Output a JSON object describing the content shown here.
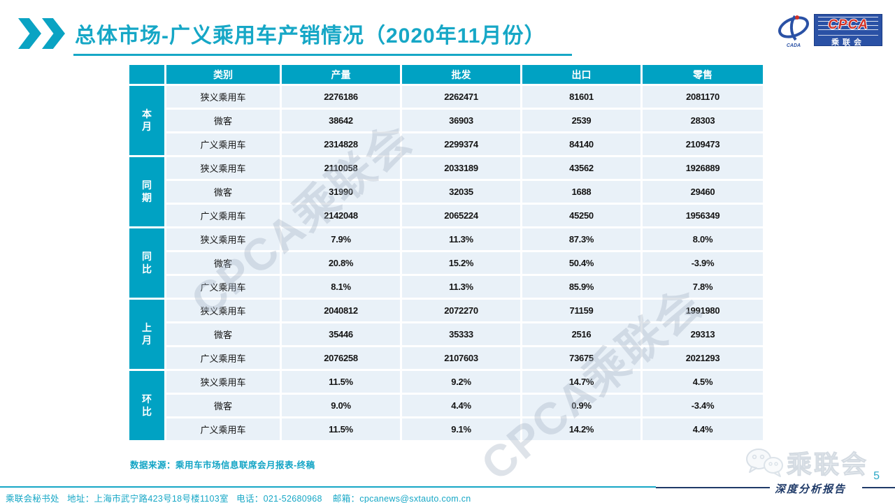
{
  "slide": {
    "title": "总体市场-广义乘用车产销情况（2020年11月份）",
    "source_note": "数据来源：乘用车市场信息联席会月报表-终稿",
    "contact": "乘联会秘书处   地址：上海市武宁路423号18号楼1103室   电话：021-52680968    邮箱：cpcanews@sxtauto.com.cn",
    "report_badge": "深度分析报告",
    "page_number": "5",
    "watermark_text": "CPCA乘联会"
  },
  "logo": {
    "emblem_sub": "CADA",
    "cpca_text": "CPCA",
    "cpca_sub": "乘联会",
    "gray_logo_text": "乘联会"
  },
  "colors": {
    "teal": "#00A2C3",
    "title_teal": "#16A7C6",
    "row_bg": "#E9F1F8",
    "navy": "#1F3A68",
    "logo_blue": "#2A51A5",
    "logo_red": "#D23026"
  },
  "table": {
    "columns": [
      "类别",
      "产量",
      "批发",
      "出口",
      "零售"
    ],
    "groups": [
      {
        "label": "本月",
        "rows": [
          {
            "category": "狭义乘用车",
            "values": [
              "2276186",
              "2262471",
              "81601",
              "2081170"
            ]
          },
          {
            "category": "微客",
            "values": [
              "38642",
              "36903",
              "2539",
              "28303"
            ]
          },
          {
            "category": "广义乘用车",
            "values": [
              "2314828",
              "2299374",
              "84140",
              "2109473"
            ]
          }
        ]
      },
      {
        "label": "同期",
        "rows": [
          {
            "category": "狭义乘用车",
            "values": [
              "2110058",
              "2033189",
              "43562",
              "1926889"
            ]
          },
          {
            "category": "微客",
            "values": [
              "31990",
              "32035",
              "1688",
              "29460"
            ]
          },
          {
            "category": "广义乘用车",
            "values": [
              "2142048",
              "2065224",
              "45250",
              "1956349"
            ]
          }
        ]
      },
      {
        "label": "同比",
        "rows": [
          {
            "category": "狭义乘用车",
            "values": [
              "7.9%",
              "11.3%",
              "87.3%",
              "8.0%"
            ]
          },
          {
            "category": "微客",
            "values": [
              "20.8%",
              "15.2%",
              "50.4%",
              "-3.9%"
            ]
          },
          {
            "category": "广义乘用车",
            "values": [
              "8.1%",
              "11.3%",
              "85.9%",
              "7.8%"
            ]
          }
        ]
      },
      {
        "label": "上月",
        "rows": [
          {
            "category": "狭义乘用车",
            "values": [
              "2040812",
              "2072270",
              "71159",
              "1991980"
            ]
          },
          {
            "category": "微客",
            "values": [
              "35446",
              "35333",
              "2516",
              "29313"
            ]
          },
          {
            "category": "广义乘用车",
            "values": [
              "2076258",
              "2107603",
              "73675",
              "2021293"
            ]
          }
        ]
      },
      {
        "label": "环比",
        "rows": [
          {
            "category": "狭义乘用车",
            "values": [
              "11.5%",
              "9.2%",
              "14.7%",
              "4.5%"
            ]
          },
          {
            "category": "微客",
            "values": [
              "9.0%",
              "4.4%",
              "0.9%",
              "-3.4%"
            ]
          },
          {
            "category": "广义乘用车",
            "values": [
              "11.5%",
              "9.1%",
              "14.2%",
              "4.4%"
            ]
          }
        ]
      }
    ]
  }
}
